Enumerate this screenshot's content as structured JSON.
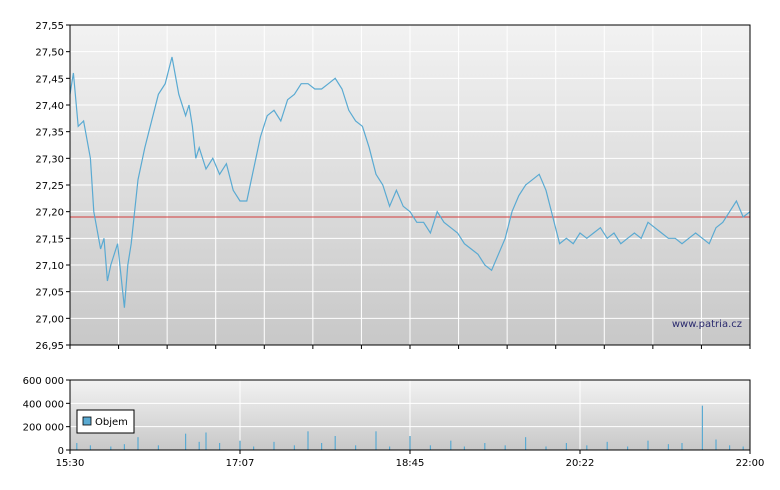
{
  "watermark": "www.patria.cz",
  "legend": {
    "label": "Objem",
    "color": "#5aaad2"
  },
  "colors": {
    "price_line": "#5aaad2",
    "reference_line": "#d23c3c",
    "volume": "#5aaad2"
  },
  "chart_data": [
    {
      "type": "line",
      "x_ticks": [
        "15:30",
        "17:07",
        "18:45",
        "20:22",
        "22:00"
      ],
      "ylim": [
        26.95,
        27.55
      ],
      "y_ticks": [
        26.95,
        27.0,
        27.05,
        27.1,
        27.15,
        27.2,
        27.25,
        27.3,
        27.35,
        27.4,
        27.45,
        27.5,
        27.55
      ],
      "y_tick_labels": [
        "26,95",
        "27,00",
        "27,05",
        "27,10",
        "27,15",
        "27,20",
        "27,25",
        "27,30",
        "27,35",
        "27,40",
        "27,45",
        "27,50",
        "27,55"
      ],
      "reference_value": 27.19,
      "grid": true,
      "series": [
        {
          "x": [
            0,
            0.005,
            0.012,
            0.02,
            0.03,
            0.035,
            0.045,
            0.05,
            0.055,
            0.06,
            0.065,
            0.07,
            0.075,
            0.08,
            0.085,
            0.09,
            0.095,
            0.1,
            0.11,
            0.12,
            0.13,
            0.14,
            0.15,
            0.16,
            0.17,
            0.175,
            0.18,
            0.185,
            0.19,
            0.2,
            0.21,
            0.22,
            0.23,
            0.24,
            0.25,
            0.26,
            0.27,
            0.28,
            0.29,
            0.3,
            0.31,
            0.32,
            0.33,
            0.34,
            0.35,
            0.36,
            0.37,
            0.38,
            0.39,
            0.4,
            0.41,
            0.42,
            0.43,
            0.44,
            0.45,
            0.46,
            0.47,
            0.48,
            0.49,
            0.5,
            0.51,
            0.52,
            0.53,
            0.54,
            0.55,
            0.56,
            0.57,
            0.58,
            0.59,
            0.6,
            0.61,
            0.62,
            0.63,
            0.64,
            0.65,
            0.66,
            0.67,
            0.68,
            0.69,
            0.7,
            0.71,
            0.72,
            0.73,
            0.74,
            0.75,
            0.76,
            0.77,
            0.78,
            0.79,
            0.8,
            0.81,
            0.82,
            0.83,
            0.84,
            0.85,
            0.86,
            0.87,
            0.88,
            0.89,
            0.9,
            0.91,
            0.92,
            0.93,
            0.94,
            0.95,
            0.96,
            0.97,
            0.98,
            0.99,
            1.0
          ],
          "y": [
            27.42,
            27.46,
            27.36,
            27.37,
            27.3,
            27.2,
            27.13,
            27.15,
            27.07,
            27.1,
            27.12,
            27.14,
            27.08,
            27.02,
            27.1,
            27.14,
            27.2,
            27.26,
            27.32,
            27.37,
            27.42,
            27.44,
            27.49,
            27.42,
            27.38,
            27.4,
            27.36,
            27.3,
            27.32,
            27.28,
            27.3,
            27.27,
            27.29,
            27.24,
            27.22,
            27.22,
            27.28,
            27.34,
            27.38,
            27.39,
            27.37,
            27.41,
            27.42,
            27.44,
            27.44,
            27.43,
            27.43,
            27.44,
            27.45,
            27.43,
            27.39,
            27.37,
            27.36,
            27.32,
            27.27,
            27.25,
            27.21,
            27.24,
            27.21,
            27.2,
            27.18,
            27.18,
            27.16,
            27.2,
            27.18,
            27.17,
            27.16,
            27.14,
            27.13,
            27.12,
            27.1,
            27.09,
            27.12,
            27.15,
            27.2,
            27.23,
            27.25,
            27.26,
            27.27,
            27.24,
            27.19,
            27.14,
            27.15,
            27.14,
            27.16,
            27.15,
            27.16,
            27.17,
            27.15,
            27.16,
            27.14,
            27.15,
            27.16,
            27.15,
            27.18,
            27.17,
            27.16,
            27.15,
            27.15,
            27.14,
            27.15,
            27.16,
            27.15,
            27.14,
            27.17,
            27.18,
            27.2,
            27.22,
            27.19,
            27.2
          ]
        }
      ]
    },
    {
      "type": "bar",
      "ylim": [
        0,
        600000
      ],
      "y_ticks": [
        0,
        200000,
        400000,
        600000
      ],
      "y_tick_labels": [
        "0",
        "200 000",
        "400 000",
        "600 000"
      ],
      "x_ticks": [
        "15:30",
        "17:07",
        "18:45",
        "20:22",
        "22:00"
      ],
      "grid": true,
      "series": [
        {
          "name": "Objem",
          "x": [
            0.01,
            0.03,
            0.06,
            0.08,
            0.1,
            0.13,
            0.17,
            0.19,
            0.2,
            0.22,
            0.25,
            0.27,
            0.3,
            0.33,
            0.35,
            0.37,
            0.39,
            0.42,
            0.45,
            0.47,
            0.5,
            0.53,
            0.56,
            0.58,
            0.61,
            0.64,
            0.67,
            0.7,
            0.73,
            0.76,
            0.79,
            0.82,
            0.85,
            0.88,
            0.9,
            0.93,
            0.95,
            0.97,
            0.99
          ],
          "values": [
            60000,
            40000,
            30000,
            50000,
            110000,
            40000,
            140000,
            70000,
            150000,
            60000,
            80000,
            30000,
            70000,
            40000,
            160000,
            60000,
            120000,
            40000,
            160000,
            30000,
            120000,
            40000,
            80000,
            30000,
            60000,
            40000,
            110000,
            30000,
            60000,
            40000,
            70000,
            30000,
            80000,
            50000,
            60000,
            380000,
            90000,
            40000,
            30000
          ]
        }
      ]
    }
  ]
}
